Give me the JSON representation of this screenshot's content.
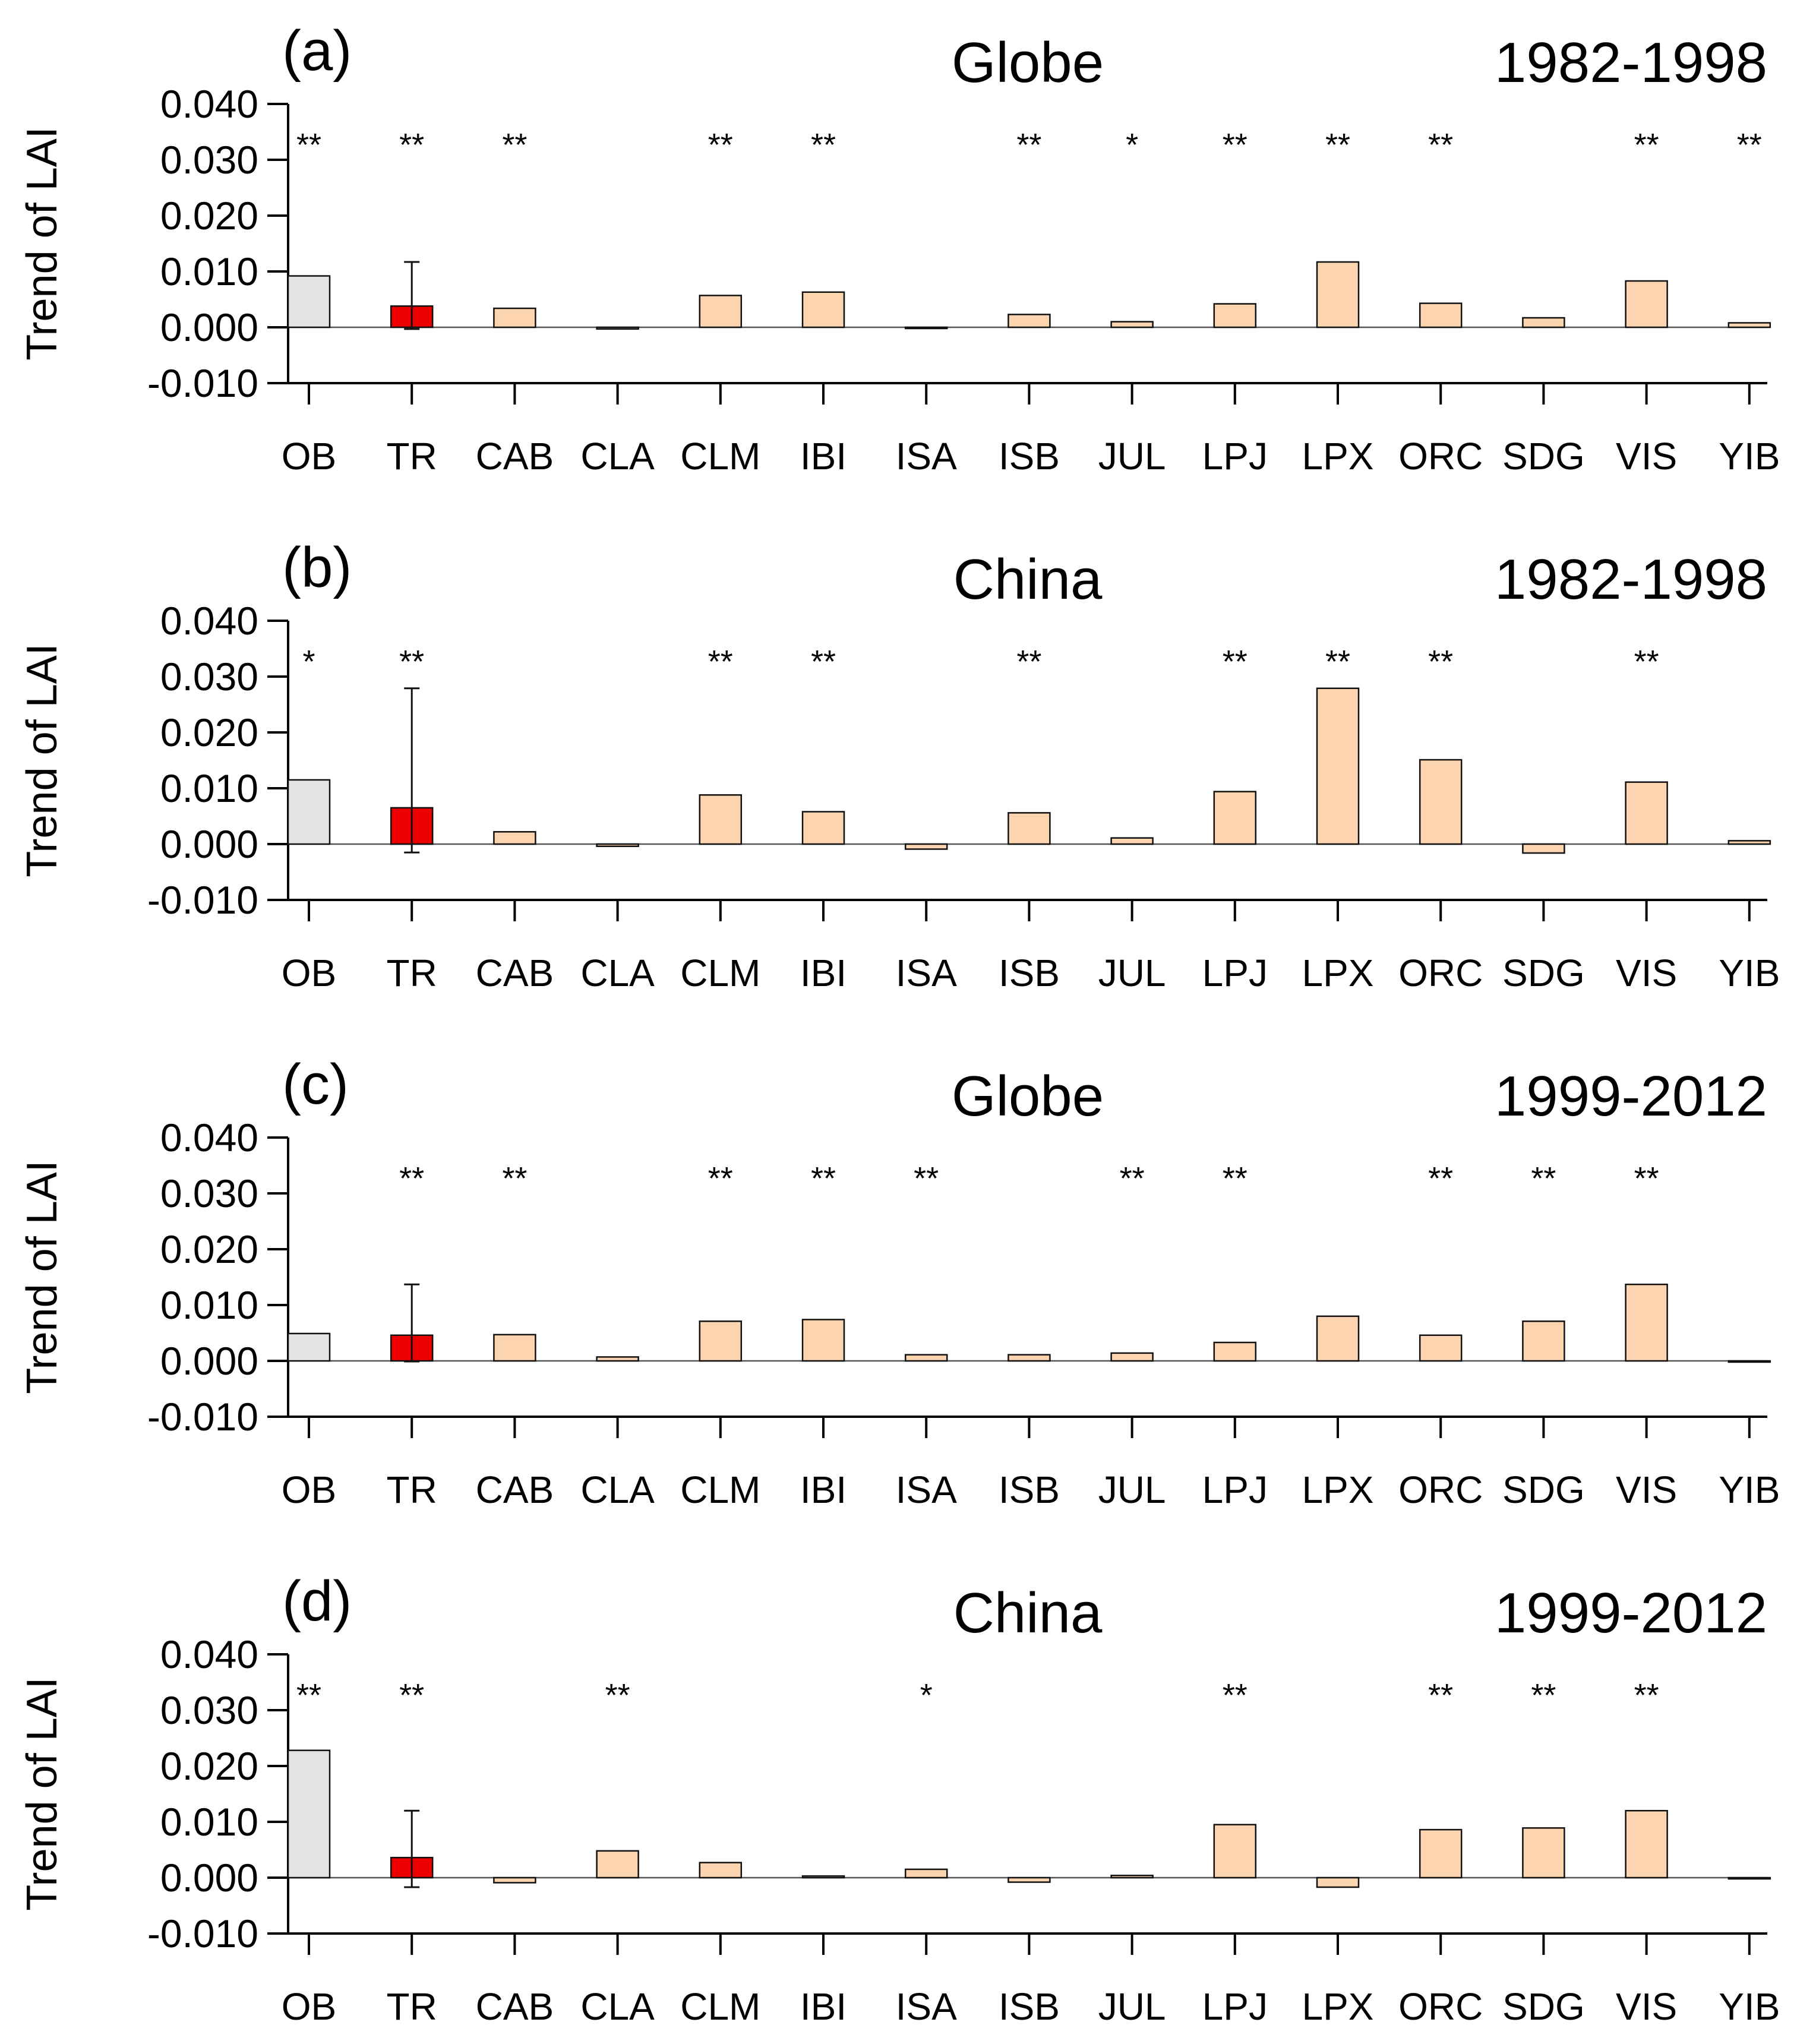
{
  "chart_data": [
    {
      "type": "bar",
      "panel_label": "(a)",
      "region": "Globe",
      "period": "1982-1998",
      "ylabel": "Trend of LAI",
      "xlabel": "",
      "ylim": [
        -0.01,
        0.04
      ],
      "yticks": [
        "0.040",
        "0.030",
        "0.020",
        "0.010",
        "0.000",
        "-0.010"
      ],
      "categories": [
        "OB",
        "TR",
        "CAB",
        "CLA",
        "CLM",
        "IBI",
        "ISA",
        "ISB",
        "JUL",
        "LPJ",
        "LPX",
        "ORC",
        "SDG",
        "VIS",
        "YIB"
      ],
      "values": [
        0.0092,
        0.0038,
        0.0034,
        -0.0003,
        0.0057,
        0.0063,
        -0.0002,
        0.0023,
        0.001,
        0.0042,
        0.0117,
        0.0043,
        0.0017,
        0.0083,
        0.0008
      ],
      "error_bar": {
        "category": "TR",
        "low": -0.0003,
        "high": 0.0117
      },
      "significance": [
        "**",
        "**",
        "**",
        "",
        "**",
        "**",
        "",
        "**",
        "*",
        "**",
        "**",
        "**",
        "",
        "**",
        "**"
      ]
    },
    {
      "type": "bar",
      "panel_label": "(b)",
      "region": "China",
      "period": "1982-1998",
      "ylabel": "Trend of LAI",
      "xlabel": "",
      "ylim": [
        -0.01,
        0.04
      ],
      "yticks": [
        "0.040",
        "0.030",
        "0.020",
        "0.010",
        "0.000",
        "-0.010"
      ],
      "categories": [
        "OB",
        "TR",
        "CAB",
        "CLA",
        "CLM",
        "IBI",
        "ISA",
        "ISB",
        "JUL",
        "LPJ",
        "LPX",
        "ORC",
        "SDG",
        "VIS",
        "YIB"
      ],
      "values": [
        0.0115,
        0.0065,
        0.0022,
        -0.0004,
        0.0088,
        0.0058,
        -0.0009,
        0.0056,
        0.0011,
        0.0094,
        0.0279,
        0.0151,
        -0.0016,
        0.0111,
        0.0006
      ],
      "error_bar": {
        "category": "TR",
        "low": -0.0015,
        "high": 0.0279
      },
      "significance": [
        "*",
        "**",
        "",
        "",
        "**",
        "**",
        "",
        "**",
        "",
        "**",
        "**",
        "**",
        "",
        "**",
        ""
      ]
    },
    {
      "type": "bar",
      "panel_label": "(c)",
      "region": "Globe",
      "period": "1999-2012",
      "ylabel": "Trend of LAI",
      "xlabel": "",
      "ylim": [
        -0.01,
        0.04
      ],
      "yticks": [
        "0.040",
        "0.030",
        "0.020",
        "0.010",
        "0.000",
        "-0.010"
      ],
      "categories": [
        "OB",
        "TR",
        "CAB",
        "CLA",
        "CLM",
        "IBI",
        "ISA",
        "ISB",
        "JUL",
        "LPJ",
        "LPX",
        "ORC",
        "SDG",
        "VIS",
        "YIB"
      ],
      "values": [
        0.0049,
        0.0046,
        0.0047,
        0.0007,
        0.0071,
        0.0074,
        0.0011,
        0.0011,
        0.0014,
        0.0033,
        0.008,
        0.0046,
        0.0071,
        0.0137,
        -0.0002
      ],
      "error_bar": {
        "category": "TR",
        "low": -0.0001,
        "high": 0.0137
      },
      "significance": [
        "",
        "**",
        "**",
        "",
        "**",
        "**",
        "**",
        "",
        "**",
        "**",
        "",
        "**",
        "**",
        "**",
        ""
      ]
    },
    {
      "type": "bar",
      "panel_label": "(d)",
      "region": "China",
      "period": "1999-2012",
      "ylabel": "Trend of LAI",
      "xlabel": "",
      "ylim": [
        -0.01,
        0.04
      ],
      "yticks": [
        "0.040",
        "0.030",
        "0.020",
        "0.010",
        "0.000",
        "-0.010"
      ],
      "categories": [
        "OB",
        "TR",
        "CAB",
        "CLA",
        "CLM",
        "IBI",
        "ISA",
        "ISB",
        "JUL",
        "LPJ",
        "LPX",
        "ORC",
        "SDG",
        "VIS",
        "YIB"
      ],
      "values": [
        0.0228,
        0.0036,
        -0.0009,
        0.0048,
        0.0027,
        0.0003,
        0.0015,
        -0.0008,
        0.0004,
        0.0095,
        -0.0017,
        0.0086,
        0.0089,
        0.012,
        0.0
      ],
      "error_bar": {
        "category": "TR",
        "low": -0.0017,
        "high": 0.012
      },
      "significance": [
        "**",
        "**",
        "",
        "**",
        "",
        "",
        "*",
        "",
        "",
        "**",
        "",
        "**",
        "**",
        "**",
        ""
      ]
    }
  ],
  "colors": {
    "ob_bar": "#e3e3e3",
    "tr_bar": "#ee0000",
    "model_bar": "#fcd5b0",
    "axis": "#000000"
  }
}
